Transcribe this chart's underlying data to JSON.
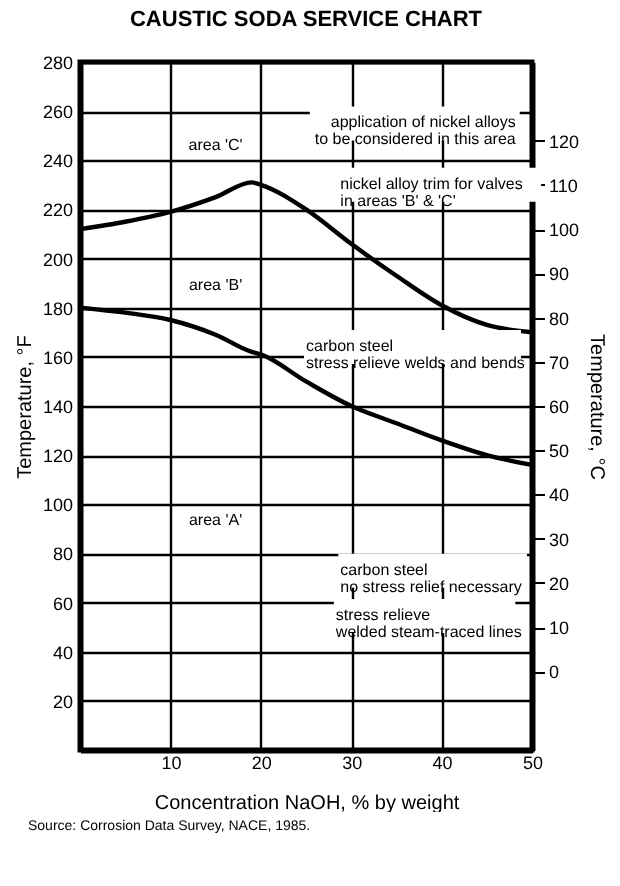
{
  "chart_data": {
    "type": "line",
    "title": "CAUSTIC SODA SERVICE CHART",
    "xlabel": "Concentration NaOH, % by weight",
    "ylabel": "Temperature, °F",
    "y2label": "Temperature, °C",
    "x": [
      0,
      5,
      10,
      15,
      19,
      20,
      25,
      30,
      35,
      40,
      45,
      50
    ],
    "series": [
      {
        "color": "#000000",
        "values": [
          212,
          215,
          219,
          225,
          231,
          230,
          220,
          206,
          193,
          181,
          173,
          170
        ]
      },
      {
        "color": "#000000",
        "values": [
          180,
          178,
          175,
          169,
          162,
          161,
          150,
          140,
          133,
          126,
          120,
          116
        ]
      }
    ],
    "xlim": [
      0,
      50
    ],
    "xticks": [
      10,
      20,
      30,
      40,
      50
    ],
    "ylim": [
      0,
      280
    ],
    "yticks": [
      20,
      40,
      60,
      80,
      100,
      120,
      140,
      160,
      180,
      200,
      220,
      240,
      260,
      280
    ],
    "y2lim": [
      -17.8,
      137.8
    ],
    "y2ticks": [
      0,
      10,
      20,
      30,
      40,
      50,
      60,
      70,
      80,
      90,
      100,
      110,
      120
    ],
    "grid": true,
    "marker": "none",
    "line_style": "solid",
    "annotations": [
      "area 'C'",
      "application of nickel alloys\nto be considered in this area",
      "nickel alloy trim for valves\nin areas 'B' & 'C'",
      "area 'B'",
      "carbon steel\nstress relieve welds and bends",
      "area 'A'",
      "carbon steel\nno stress relief necessary",
      "stress relieve\nwelded steam-traced lines",
      "Source: Corrosion Data Survey, NACE, 1985."
    ]
  }
}
